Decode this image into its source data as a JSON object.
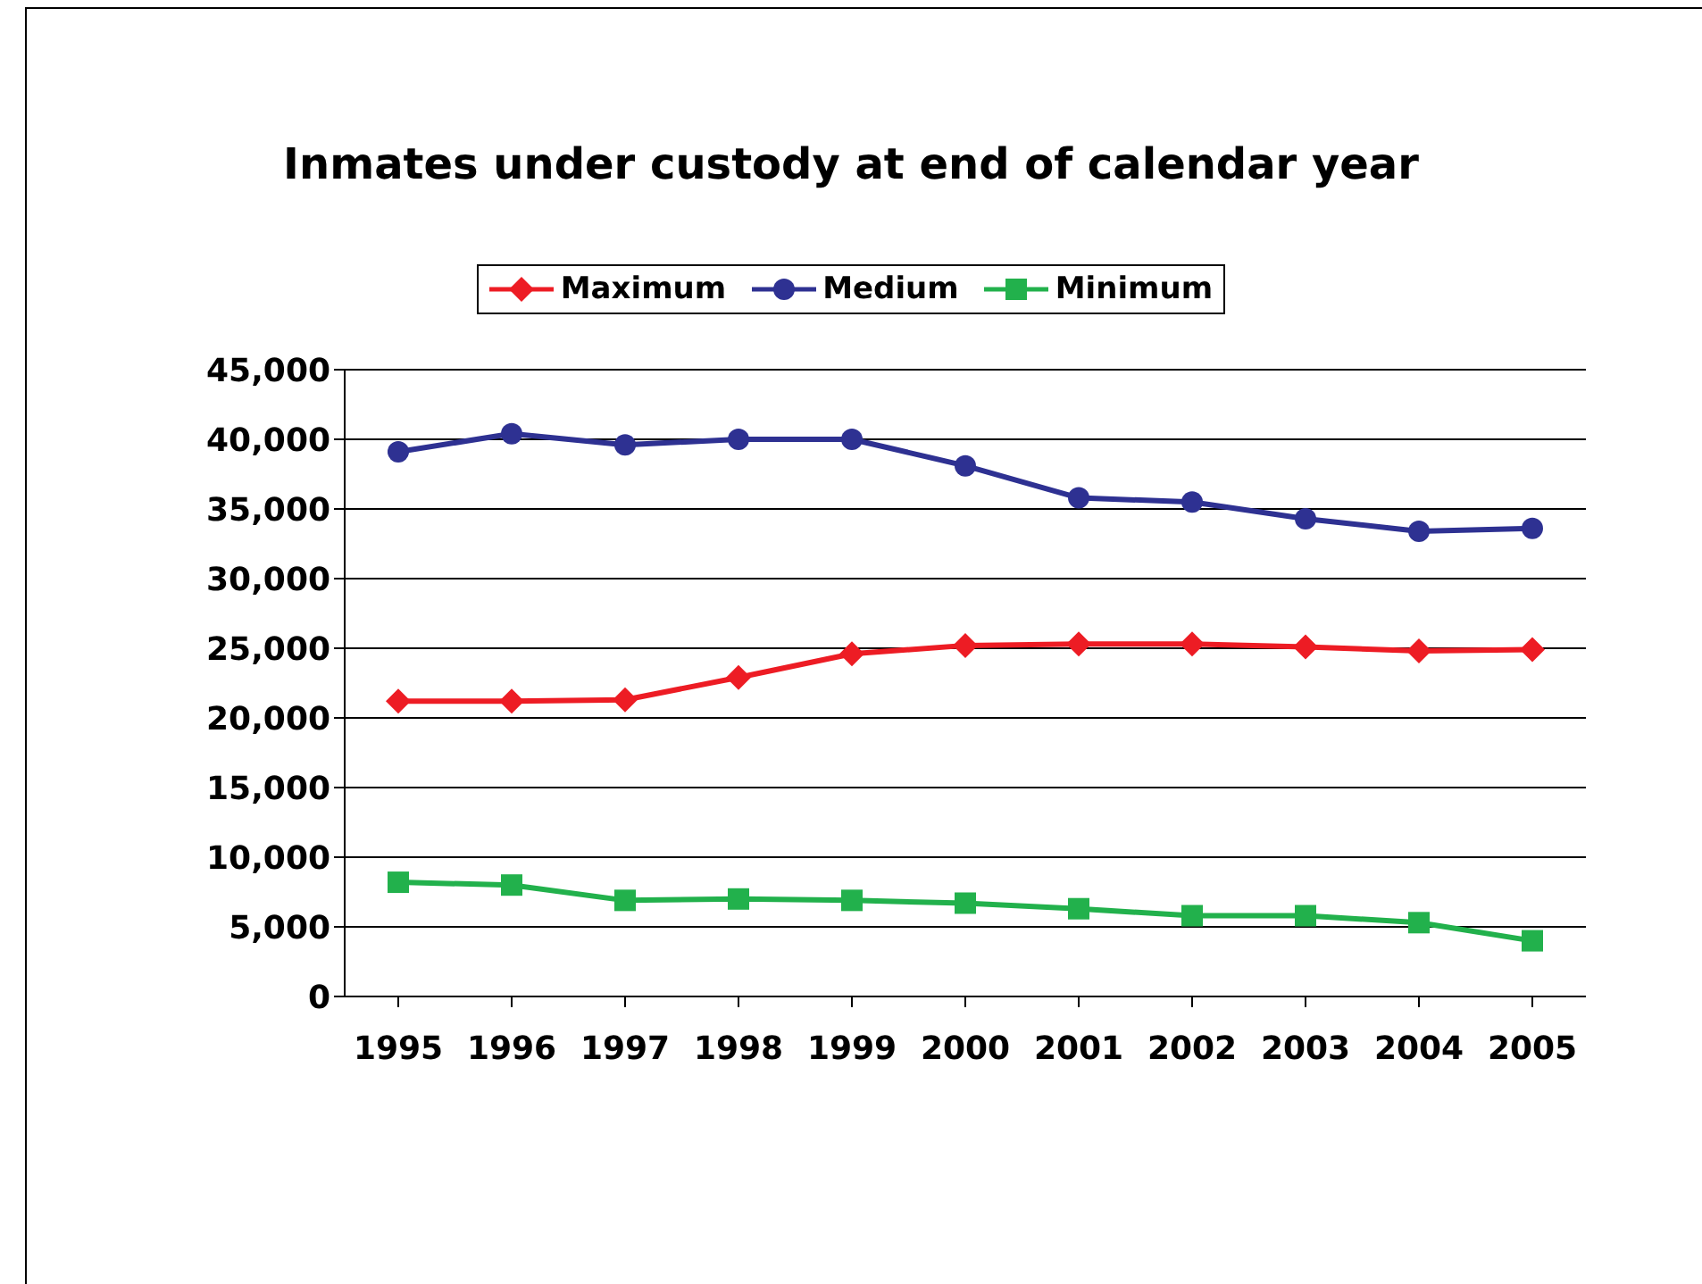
{
  "chart_data": {
    "type": "line",
    "title": "Inmates under custody at end of calendar year",
    "categories": [
      "1995",
      "1996",
      "1997",
      "1998",
      "1999",
      "2000",
      "2001",
      "2002",
      "2003",
      "2004",
      "2005"
    ],
    "series": [
      {
        "name": "Maximum",
        "color": "#ed1c24",
        "marker": "diamond",
        "values": [
          21200,
          21200,
          21300,
          22900,
          24600,
          25200,
          25300,
          25300,
          25100,
          24800,
          24900
        ]
      },
      {
        "name": "Medium",
        "color": "#2e3192",
        "marker": "circle",
        "values": [
          39100,
          40400,
          39600,
          40000,
          40000,
          38100,
          35800,
          35500,
          34300,
          33400,
          33600
        ]
      },
      {
        "name": "Minimum",
        "color": "#22b14c",
        "marker": "square",
        "values": [
          8200,
          8000,
          6900,
          7000,
          6900,
          6700,
          6300,
          5800,
          5800,
          5300,
          4000
        ]
      }
    ],
    "ylim": [
      0,
      45000
    ],
    "yticks": [
      0,
      {
        "value": 5000,
        "label": "5,000"
      },
      {
        "value": 10000,
        "label": "10,000"
      },
      {
        "value": 15000,
        "label": "15,000"
      },
      {
        "value": 20000,
        "label": "20,000"
      },
      {
        "value": 25000,
        "label": "25,000"
      },
      {
        "value": 30000,
        "label": "30,000"
      },
      {
        "value": 35000,
        "label": "35,000"
      },
      {
        "value": 40000,
        "label": "40,000"
      },
      {
        "value": 45000,
        "label": "45,000"
      }
    ],
    "grid": "y",
    "legend": "top"
  }
}
